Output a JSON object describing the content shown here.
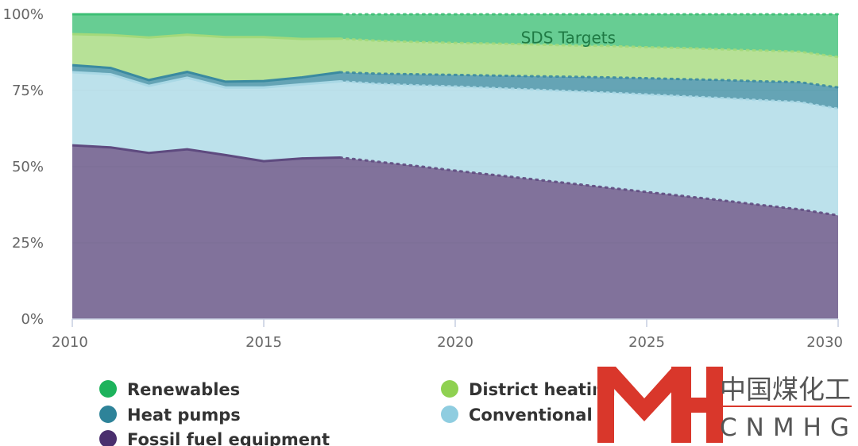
{
  "chart_data": {
    "type": "area",
    "stacking": "percent",
    "title": "",
    "xlabel": "",
    "ylabel": "",
    "x": [
      2010,
      2011,
      2012,
      2013,
      2014,
      2015,
      2016,
      2017,
      2018,
      2019,
      2020,
      2021,
      2022,
      2023,
      2024,
      2025,
      2026,
      2027,
      2028,
      2029,
      2030
    ],
    "x_ticks": [
      2010,
      2015,
      2020,
      2025,
      2030
    ],
    "x_tick_labels": [
      "2010",
      "2015",
      "2020",
      "2025",
      "2030"
    ],
    "xlim": [
      2010,
      2030
    ],
    "ylim": [
      0,
      100
    ],
    "y_ticks": [
      0,
      25,
      50,
      75,
      100
    ],
    "y_tick_labels": [
      "0%",
      "25%",
      "50%",
      "75%",
      "100%"
    ],
    "historical_end": 2017,
    "projection_style": "dotted",
    "series": [
      {
        "name": "Fossil fuel equipment",
        "color": "#5e4a7f",
        "values": [
          57,
          56.3,
          54.5,
          55.7,
          53.8,
          51.8,
          52.7,
          53,
          51.6,
          50.2,
          48.7,
          47.3,
          45.9,
          44.5,
          43.1,
          41.7,
          40.3,
          38.9,
          37.4,
          36,
          34
        ]
      },
      {
        "name": "Conventional electric equipment",
        "color": "#a9d8e5",
        "values": [
          24,
          24,
          22,
          23.5,
          22.2,
          24.2,
          24.3,
          25,
          25.6,
          26.5,
          27.6,
          28.5,
          29.4,
          30.3,
          31.2,
          32,
          32.8,
          33.6,
          34.4,
          35.2,
          35
        ]
      },
      {
        "name": "Heat pumps",
        "color": "#3a8aa0",
        "values": [
          2.3,
          2.1,
          1.9,
          1.9,
          1.9,
          2.1,
          2.3,
          3,
          3.3,
          3.6,
          3.8,
          4.1,
          4.4,
          4.7,
          5,
          5.3,
          5.6,
          5.9,
          6.2,
          6.5,
          7
        ]
      },
      {
        "name": "District heating and solar thermal",
        "color": "#a3d97a",
        "values": [
          10.2,
          10.8,
          14,
          12.2,
          14.6,
          14.4,
          12.6,
          11,
          10.8,
          10.6,
          10.5,
          10.5,
          10.4,
          10.3,
          10.3,
          10.2,
          10.2,
          10.1,
          10.1,
          10,
          10
        ]
      },
      {
        "name": "Renewables",
        "color": "#3cbf74",
        "values": [
          6.5,
          6.8,
          7.6,
          6.7,
          7.5,
          7.5,
          8.1,
          8,
          8.7,
          9.1,
          9.4,
          9.6,
          9.9,
          10.2,
          10.4,
          10.8,
          11.1,
          11.5,
          11.9,
          12.3,
          14
        ]
      }
    ],
    "annotations": [
      {
        "text": "SDS Targets",
        "x": 2023,
        "y": 98
      }
    ],
    "legend_position": "bottom",
    "legend": [
      {
        "label": "Renewables",
        "color": "#1db35c"
      },
      {
        "label": "District heating",
        "color": "#8fd151"
      },
      {
        "label": "Heat pumps",
        "color": "#2e8399"
      },
      {
        "label": "Conventional",
        "color": "#8fcde0"
      },
      {
        "label": "Fossil fuel equipment",
        "color": "#4a2f6e"
      }
    ]
  },
  "watermark": {
    "chinese": "中国煤化工",
    "latin": "CNMHG",
    "color": "#d9372b"
  }
}
